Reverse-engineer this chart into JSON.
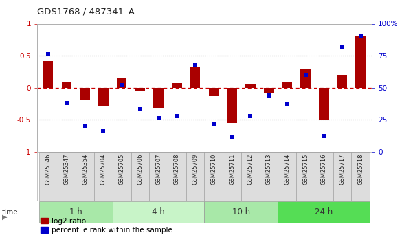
{
  "title": "GDS1768 / 487341_A",
  "samples": [
    "GSM25346",
    "GSM25347",
    "GSM25354",
    "GSM25704",
    "GSM25705",
    "GSM25706",
    "GSM25707",
    "GSM25708",
    "GSM25709",
    "GSM25710",
    "GSM25711",
    "GSM25712",
    "GSM25713",
    "GSM25714",
    "GSM25715",
    "GSM25716",
    "GSM25717",
    "GSM25718"
  ],
  "log2_ratio": [
    0.42,
    0.08,
    -0.2,
    -0.28,
    0.15,
    -0.05,
    -0.32,
    0.07,
    0.33,
    -0.13,
    -0.55,
    0.05,
    -0.08,
    0.08,
    0.29,
    -0.5,
    0.2,
    0.8
  ],
  "percentile": [
    76,
    38,
    20,
    16,
    52,
    33,
    26,
    28,
    68,
    22,
    11,
    28,
    44,
    37,
    60,
    12,
    82,
    90
  ],
  "groups": [
    {
      "label": "1 h",
      "start": 0,
      "end": 4,
      "color": "#a8e8a8"
    },
    {
      "label": "4 h",
      "start": 4,
      "end": 9,
      "color": "#c8f4c8"
    },
    {
      "label": "10 h",
      "start": 9,
      "end": 13,
      "color": "#a8e8a8"
    },
    {
      "label": "24 h",
      "start": 13,
      "end": 18,
      "color": "#55dd55"
    }
  ],
  "bar_color": "#AA0000",
  "dot_color": "#0000CC",
  "zero_line_color": "#CC0000",
  "dotted_line_color": "#555555",
  "ylim_left": [
    -1,
    1
  ],
  "ylim_right": [
    0,
    100
  ],
  "yticks_left": [
    -1,
    -0.5,
    0,
    0.5,
    1
  ],
  "ytick_labels_left": [
    "-1",
    "-0.5",
    "0",
    "0.5",
    "1"
  ],
  "yticks_right": [
    0,
    25,
    50,
    75,
    100
  ],
  "ytick_labels_right": [
    "0",
    "25",
    "50",
    "75",
    "100%"
  ],
  "background_color": "#ffffff",
  "legend_red_label": "log2 ratio",
  "legend_blue_label": "percentile rank within the sample"
}
